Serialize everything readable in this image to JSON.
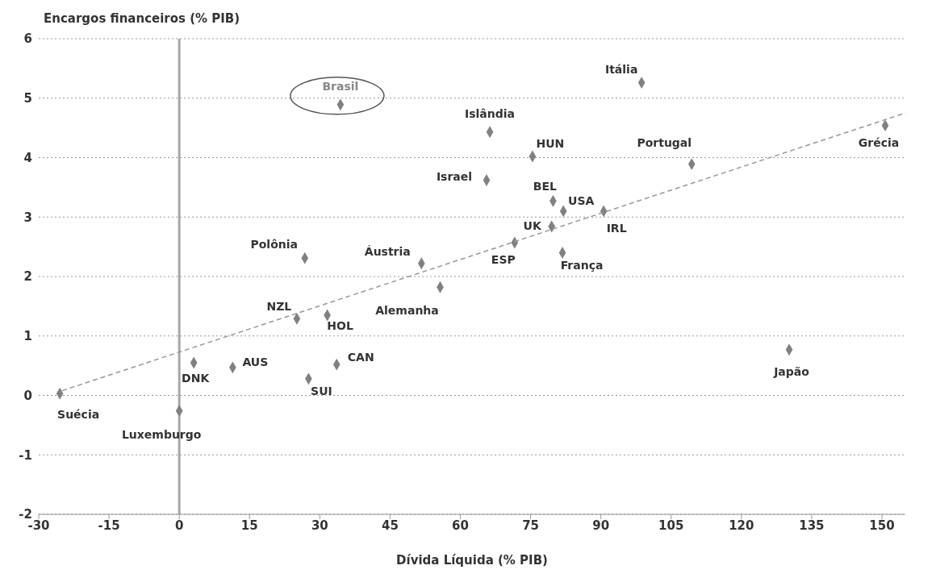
{
  "chart_data": {
    "type": "scatter",
    "xlabel": "Dívida Líquida (% PIB)",
    "ylabel": "Encargos financeiros (% PIB)",
    "xlim": [
      -30,
      155
    ],
    "xticks": [
      -30,
      -15,
      0,
      15,
      30,
      45,
      60,
      75,
      90,
      105,
      120,
      135,
      150
    ],
    "ylim": [
      -2,
      6
    ],
    "yticks": [
      -2,
      -1,
      0,
      1,
      2,
      3,
      4,
      5,
      6
    ],
    "grid": "y",
    "legend": false,
    "marker": "diamond",
    "series": [
      {
        "color": "#808080",
        "x": [
          34.4,
          98.7,
          66.3,
          75.4,
          65.6,
          109.4,
          150.7,
          79.8,
          82.0,
          90.6,
          79.5,
          71.6,
          81.8,
          26.8,
          51.7,
          55.7,
          25.1,
          31.6,
          3.1,
          11.4,
          33.6,
          27.6,
          130.2,
          -25.5,
          0
        ],
        "values": [
          4.89,
          5.26,
          4.43,
          4.02,
          3.62,
          3.89,
          4.54,
          3.27,
          3.1,
          3.1,
          2.84,
          2.57,
          2.4,
          2.31,
          2.22,
          1.82,
          1.29,
          1.35,
          0.55,
          0.47,
          0.52,
          0.28,
          0.77,
          0.03,
          -0.26
        ]
      },
      {
        "type": "line",
        "color": "#999999",
        "line_style": "dashed",
        "marker": "none",
        "x": [
          -25,
          155
        ],
        "values": [
          0.08,
          4.75
        ]
      }
    ],
    "ref_lines": [
      {
        "axis": "x",
        "value": 0,
        "color": "#a6a6a6"
      }
    ],
    "annotations": [
      {
        "text": "Brasil",
        "x": 34.4,
        "y": 4.89
      },
      {
        "text": "Itália",
        "x": 98.7,
        "y": 5.26
      },
      {
        "text": "Islândia",
        "x": 66.3,
        "y": 4.43
      },
      {
        "text": "HUN",
        "x": 75.4,
        "y": 4.02
      },
      {
        "text": "Israel",
        "x": 65.6,
        "y": 3.62
      },
      {
        "text": "Portugal",
        "x": 109.4,
        "y": 3.89
      },
      {
        "text": "Grécia",
        "x": 150.7,
        "y": 4.54
      },
      {
        "text": "BEL",
        "x": 79.8,
        "y": 3.27
      },
      {
        "text": "USA",
        "x": 82.0,
        "y": 3.1
      },
      {
        "text": "IRL",
        "x": 90.6,
        "y": 3.1
      },
      {
        "text": "UK",
        "x": 79.5,
        "y": 2.84
      },
      {
        "text": "ESP",
        "x": 71.6,
        "y": 2.57
      },
      {
        "text": "França",
        "x": 81.8,
        "y": 2.4
      },
      {
        "text": "Polônia",
        "x": 26.8,
        "y": 2.31
      },
      {
        "text": "Áustria",
        "x": 51.7,
        "y": 2.22
      },
      {
        "text": "Alemanha",
        "x": 55.7,
        "y": 1.82
      },
      {
        "text": "NZL",
        "x": 25.1,
        "y": 1.29
      },
      {
        "text": "HOL",
        "x": 31.6,
        "y": 1.35
      },
      {
        "text": "DNK",
        "x": 3.1,
        "y": 0.55
      },
      {
        "text": "AUS",
        "x": 11.4,
        "y": 0.47
      },
      {
        "text": "CAN",
        "x": 33.6,
        "y": 0.52
      },
      {
        "text": "SUI",
        "x": 27.6,
        "y": 0.28
      },
      {
        "text": "Japão",
        "x": 130.2,
        "y": 0.77
      },
      {
        "text": "Suécia",
        "x": -25.5,
        "y": 0.03
      },
      {
        "text": "Luxemburgo",
        "x": 0,
        "y": -0.26
      }
    ]
  }
}
